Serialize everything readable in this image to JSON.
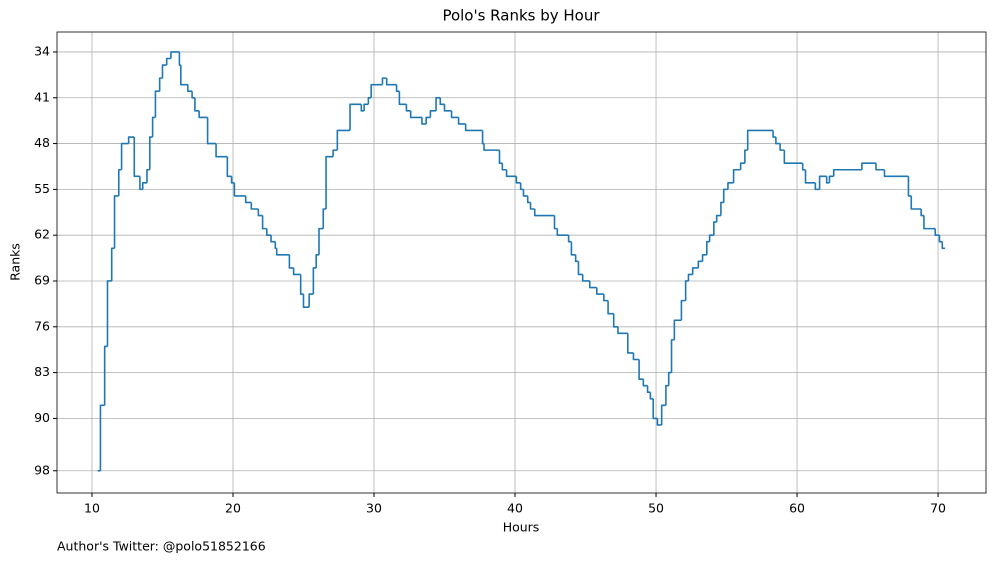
{
  "chart_data": {
    "type": "line",
    "drawstyle": "steps-post",
    "title": "Polo's Ranks by Hour",
    "xlabel": "Hours",
    "ylabel": "Ranks",
    "footnote": "Author's Twitter: @polo51852166",
    "x": [
      10.4,
      10.6,
      10.9,
      11.1,
      11.4,
      11.6,
      11.9,
      12.1,
      12.6,
      13.0,
      13.4,
      13.6,
      13.9,
      14.1,
      14.3,
      14.5,
      14.8,
      15.0,
      15.3,
      15.6,
      16.2,
      16.3,
      16.8,
      17.1,
      17.3,
      17.6,
      18.2,
      18.8,
      19.6,
      19.9,
      20.1,
      20.9,
      21.3,
      21.8,
      22.1,
      22.4,
      22.7,
      23.0,
      23.1,
      24.0,
      24.3,
      24.8,
      25.0,
      25.4,
      25.7,
      25.9,
      26.1,
      26.4,
      26.6,
      27.1,
      27.4,
      28.3,
      29.1,
      29.3,
      29.6,
      29.8,
      30.6,
      30.9,
      31.6,
      31.8,
      32.3,
      32.6,
      33.4,
      33.7,
      34.0,
      34.4,
      34.7,
      35.0,
      35.5,
      36.0,
      36.5,
      37.7,
      37.8,
      38.9,
      39.1,
      39.4,
      40.1,
      40.4,
      40.6,
      40.9,
      41.1,
      41.4,
      42.8,
      43.0,
      43.8,
      44.0,
      44.3,
      44.5,
      44.8,
      45.3,
      45.8,
      46.3,
      46.6,
      47.0,
      47.3,
      48.0,
      48.4,
      48.8,
      49.1,
      49.4,
      49.6,
      49.8,
      50.1,
      50.4,
      50.7,
      50.9,
      51.1,
      51.3,
      51.8,
      52.1,
      52.3,
      52.6,
      53.0,
      53.3,
      53.6,
      53.8,
      54.1,
      54.3,
      54.6,
      54.8,
      55.1,
      55.5,
      56.0,
      56.3,
      56.5,
      58.3,
      58.5,
      58.8,
      59.1,
      60.4,
      60.6,
      61.3,
      61.6,
      62.1,
      62.3,
      62.6,
      64.6,
      65.6,
      66.2,
      67.9,
      68.1,
      68.8,
      69.0,
      69.8,
      70.1,
      70.3,
      70.5
    ],
    "series": [
      {
        "name": "Rank",
        "color": "#1f77b4",
        "values": [
          98,
          88,
          79,
          69,
          64,
          56,
          52,
          48,
          47,
          53,
          55,
          54,
          52,
          47,
          44,
          40,
          38,
          36,
          35,
          34,
          36,
          39,
          40,
          41,
          43,
          44,
          48,
          50,
          53,
          54,
          56,
          57,
          58,
          59,
          61,
          62,
          63,
          64,
          65,
          67,
          68,
          71,
          73,
          71,
          67,
          65,
          61,
          58,
          50,
          49,
          46,
          42,
          43,
          42,
          41,
          39,
          38,
          39,
          40,
          42,
          43,
          44,
          45,
          44,
          43,
          41,
          42,
          43,
          44,
          45,
          46,
          48,
          49,
          51,
          52,
          53,
          54,
          55,
          56,
          57,
          58,
          59,
          61,
          62,
          63,
          65,
          66,
          68,
          69,
          70,
          71,
          72,
          74,
          76,
          77,
          80,
          81,
          84,
          85,
          86,
          87,
          90,
          91,
          88,
          85,
          83,
          78,
          75,
          72,
          69,
          68,
          67,
          66,
          65,
          63,
          62,
          60,
          59,
          57,
          55,
          54,
          52,
          51,
          49,
          46,
          47,
          48,
          49,
          51,
          52,
          54,
          55,
          53,
          54,
          53,
          52,
          51,
          52,
          53,
          56,
          58,
          59,
          61,
          62,
          63,
          64,
          64
        ]
      }
    ],
    "xlim": [
      7.52,
      73.4
    ],
    "ylim": [
      101.4,
      30.95
    ],
    "xticks": [
      10,
      20,
      30,
      40,
      50,
      60,
      70
    ],
    "yticks": [
      34,
      41,
      48,
      55,
      62,
      69,
      76,
      83,
      90,
      98
    ],
    "grid": true
  }
}
